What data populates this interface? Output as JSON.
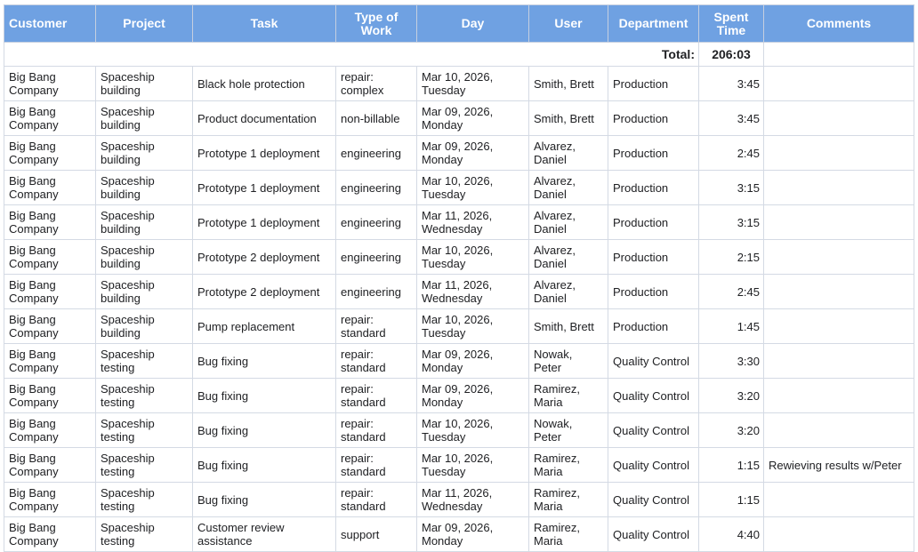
{
  "columns": [
    "Customer",
    "Project",
    "Task",
    "Type of Work",
    "Day",
    "User",
    "Department",
    "Spent Time",
    "Comments"
  ],
  "total": {
    "label": "Total:",
    "value": "206:03"
  },
  "rows": [
    {
      "customer": "Big Bang Company",
      "project": "Spaceship building",
      "task": "Black hole protection",
      "type": "repair: complex",
      "day": "Mar 10, 2026, Tuesday",
      "user": "Smith, Brett",
      "department": "Production",
      "spent": "3:45",
      "comments": ""
    },
    {
      "customer": "Big Bang Company",
      "project": "Spaceship building",
      "task": "Product documentation",
      "type": "non-billable",
      "day": "Mar 09, 2026, Monday",
      "user": "Smith, Brett",
      "department": "Production",
      "spent": "3:45",
      "comments": ""
    },
    {
      "customer": "Big Bang Company",
      "project": "Spaceship building",
      "task": "Prototype 1 deployment",
      "type": "engineering",
      "day": "Mar 09, 2026, Monday",
      "user": "Alvarez, Daniel",
      "department": "Production",
      "spent": "2:45",
      "comments": ""
    },
    {
      "customer": "Big Bang Company",
      "project": "Spaceship building",
      "task": "Prototype 1 deployment",
      "type": "engineering",
      "day": "Mar 10, 2026, Tuesday",
      "user": "Alvarez, Daniel",
      "department": "Production",
      "spent": "3:15",
      "comments": ""
    },
    {
      "customer": "Big Bang Company",
      "project": "Spaceship building",
      "task": "Prototype 1 deployment",
      "type": "engineering",
      "day": "Mar 11, 2026, Wednesday",
      "user": "Alvarez, Daniel",
      "department": "Production",
      "spent": "3:15",
      "comments": ""
    },
    {
      "customer": "Big Bang Company",
      "project": "Spaceship building",
      "task": "Prototype 2 deployment",
      "type": "engineering",
      "day": "Mar 10, 2026, Tuesday",
      "user": "Alvarez, Daniel",
      "department": "Production",
      "spent": "2:15",
      "comments": ""
    },
    {
      "customer": "Big Bang Company",
      "project": "Spaceship building",
      "task": "Prototype 2 deployment",
      "type": "engineering",
      "day": "Mar 11, 2026, Wednesday",
      "user": "Alvarez, Daniel",
      "department": "Production",
      "spent": "2:45",
      "comments": ""
    },
    {
      "customer": "Big Bang Company",
      "project": "Spaceship building",
      "task": "Pump replacement",
      "type": "repair: standard",
      "day": "Mar 10, 2026, Tuesday",
      "user": "Smith, Brett",
      "department": "Production",
      "spent": "1:45",
      "comments": ""
    },
    {
      "customer": "Big Bang Company",
      "project": "Spaceship testing",
      "task": "Bug fixing",
      "type": "repair: standard",
      "day": "Mar 09, 2026, Monday",
      "user": "Nowak, Peter",
      "department": "Quality Control",
      "spent": "3:30",
      "comments": ""
    },
    {
      "customer": "Big Bang Company",
      "project": "Spaceship testing",
      "task": "Bug fixing",
      "type": "repair: standard",
      "day": "Mar 09, 2026, Monday",
      "user": "Ramirez, Maria",
      "department": "Quality Control",
      "spent": "3:20",
      "comments": ""
    },
    {
      "customer": "Big Bang Company",
      "project": "Spaceship testing",
      "task": "Bug fixing",
      "type": "repair: standard",
      "day": "Mar 10, 2026, Tuesday",
      "user": "Nowak, Peter",
      "department": "Quality Control",
      "spent": "3:20",
      "comments": ""
    },
    {
      "customer": "Big Bang Company",
      "project": "Spaceship testing",
      "task": "Bug fixing",
      "type": "repair: standard",
      "day": "Mar 10, 2026, Tuesday",
      "user": "Ramirez, Maria",
      "department": "Quality Control",
      "spent": "1:15",
      "comments": "Rewieving results w/Peter"
    },
    {
      "customer": "Big Bang Company",
      "project": "Spaceship testing",
      "task": "Bug fixing",
      "type": "repair: standard",
      "day": "Mar 11, 2026, Wednesday",
      "user": "Ramirez, Maria",
      "department": "Quality Control",
      "spent": "1:15",
      "comments": ""
    },
    {
      "customer": "Big Bang Company",
      "project": "Spaceship testing",
      "task": "Customer review assistance",
      "type": "support",
      "day": "Mar 09, 2026, Monday",
      "user": "Ramirez, Maria",
      "department": "Quality Control",
      "spent": "4:40",
      "comments": ""
    }
  ]
}
